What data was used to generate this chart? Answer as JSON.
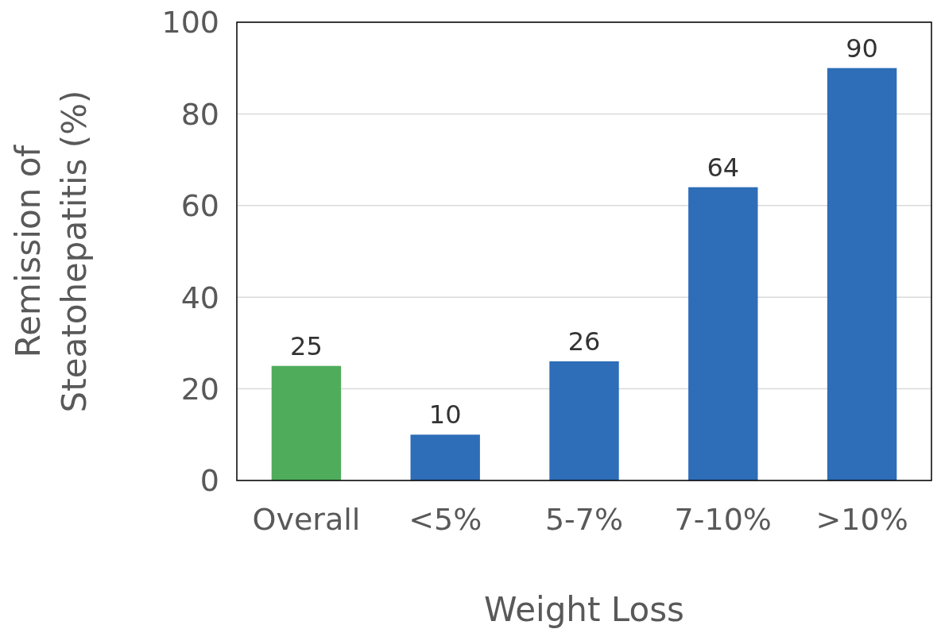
{
  "chart_data": {
    "type": "bar",
    "xlabel": "Weight Loss",
    "ylabel": "Remission of Steatohepatitis (%)",
    "categories": [
      "Overall",
      "<5%",
      "5-7%",
      "7-10%",
      ">10%"
    ],
    "values": [
      25,
      10,
      26,
      64,
      90
    ],
    "colors": [
      "#4fac5b",
      "#2e6db8",
      "#2e6db8",
      "#2e6db8",
      "#2e6db8"
    ],
    "ylim": [
      0,
      100
    ],
    "yticks": [
      0,
      20,
      40,
      60,
      80,
      100
    ],
    "grid": "y",
    "data_labels": true
  }
}
